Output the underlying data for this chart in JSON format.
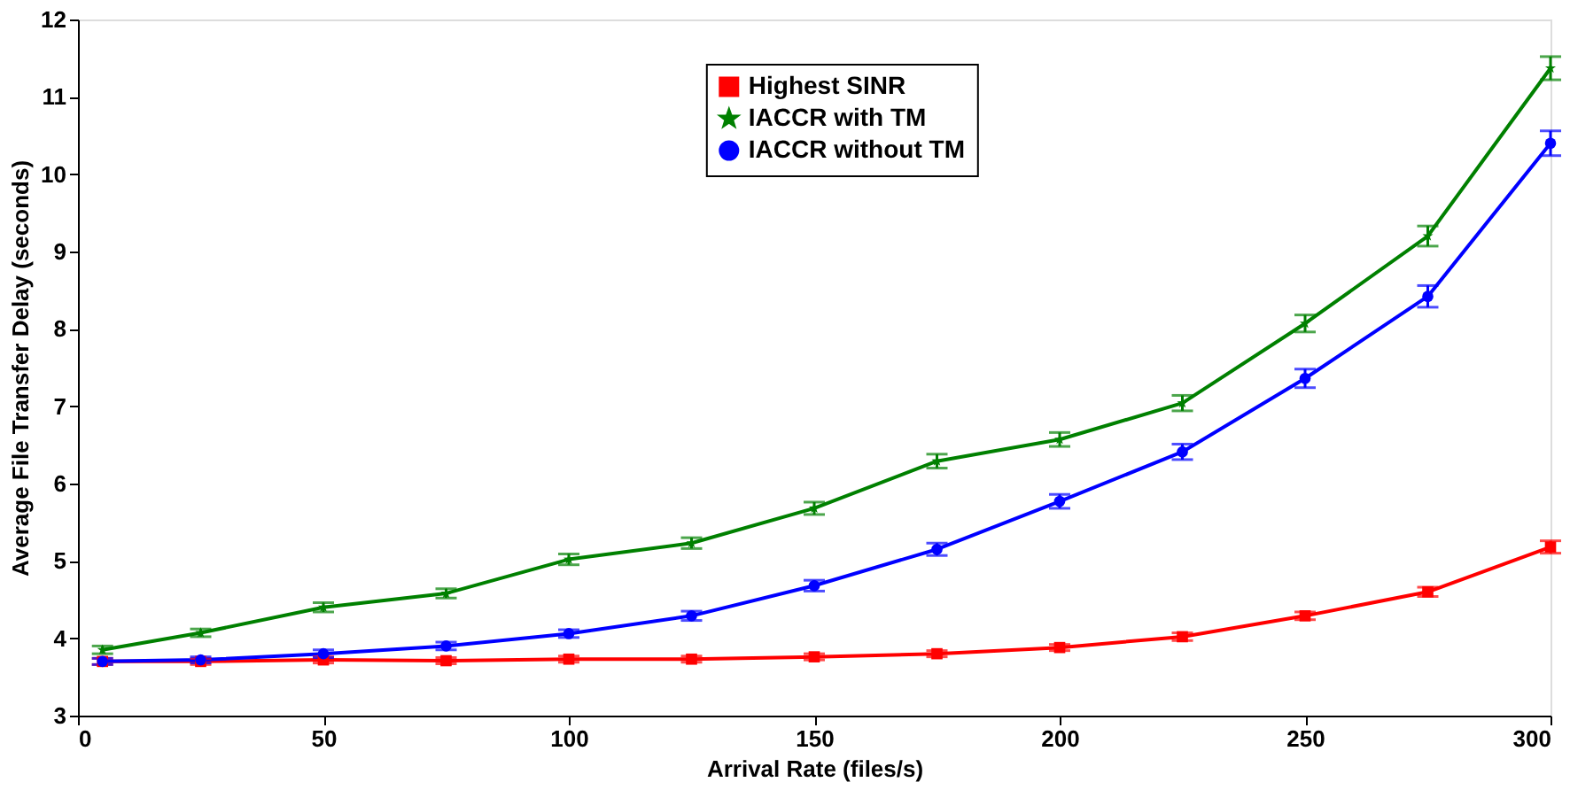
{
  "chart_data": {
    "type": "line",
    "xlabel": "Arrival Rate (files/s)",
    "ylabel": "Average File Transfer Delay (seconds)",
    "x": [
      5,
      25,
      50,
      75,
      100,
      125,
      150,
      175,
      200,
      225,
      250,
      275,
      300
    ],
    "xlim": [
      0,
      300
    ],
    "xticks": [
      0,
      50,
      100,
      150,
      200,
      250,
      300
    ],
    "ylim": [
      3,
      12
    ],
    "yticks": [
      3,
      4,
      5,
      6,
      7,
      8,
      9,
      10,
      11,
      12
    ],
    "grid": false,
    "legend": "top",
    "line_style": "solid",
    "series": [
      {
        "name": "Highest SINR",
        "color": "#ff0000",
        "marker": "square",
        "values": [
          3.7,
          3.7,
          3.72,
          3.71,
          3.73,
          3.73,
          3.76,
          3.8,
          3.88,
          4.02,
          4.29,
          4.6,
          5.18
        ],
        "errors": [
          0.04,
          0.04,
          0.04,
          0.04,
          0.04,
          0.04,
          0.04,
          0.04,
          0.04,
          0.05,
          0.05,
          0.06,
          0.08
        ]
      },
      {
        "name": "IACCR with TM",
        "color": "#008000",
        "marker": "star",
        "values": [
          3.85,
          4.07,
          4.4,
          4.58,
          5.02,
          5.23,
          5.68,
          6.29,
          6.57,
          7.04,
          8.07,
          9.2,
          11.37
        ],
        "errors": [
          0.05,
          0.05,
          0.06,
          0.06,
          0.07,
          0.07,
          0.08,
          0.09,
          0.09,
          0.1,
          0.11,
          0.13,
          0.15
        ]
      },
      {
        "name": "IACCR without TM",
        "color": "#0000ff",
        "marker": "circle",
        "values": [
          3.7,
          3.72,
          3.8,
          3.9,
          4.06,
          4.29,
          4.68,
          5.15,
          5.77,
          6.41,
          7.36,
          8.42,
          10.4
        ],
        "errors": [
          0.04,
          0.04,
          0.05,
          0.05,
          0.05,
          0.06,
          0.07,
          0.08,
          0.09,
          0.1,
          0.12,
          0.14,
          0.16
        ]
      }
    ]
  }
}
